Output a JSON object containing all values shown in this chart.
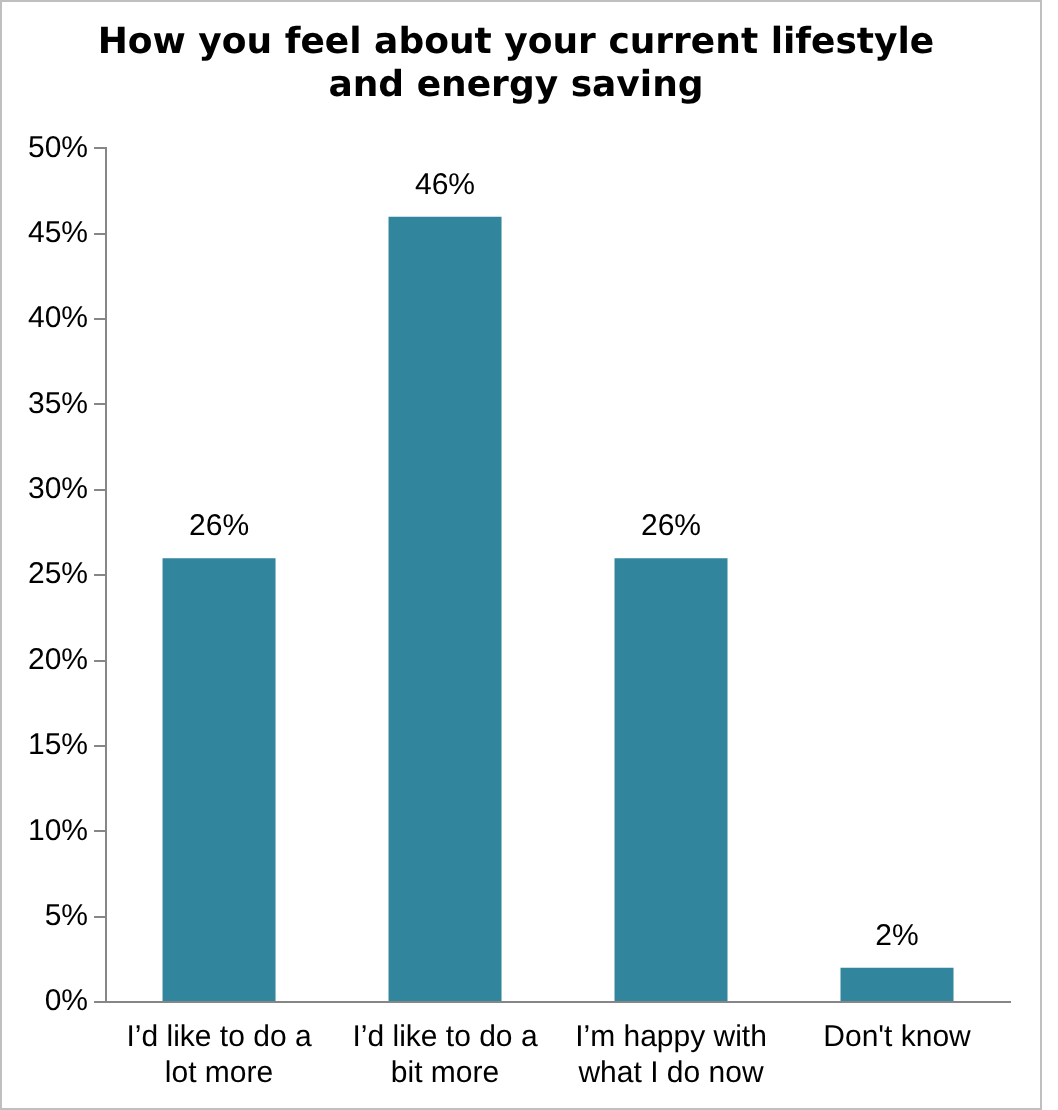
{
  "chart_data": {
    "type": "bar",
    "title": "How you feel about your current lifestyle and energy saving",
    "categories": [
      "I’d like to do a lot more",
      "I’d like to do a bit more",
      "I’m happy with what I do now",
      "Don't know"
    ],
    "values": [
      26,
      46,
      26,
      2
    ],
    "value_labels": [
      "26%",
      "46%",
      "26%",
      "2%"
    ],
    "color": "#31859c",
    "ylim": [
      0,
      50
    ],
    "yticks": [
      {
        "value": 0,
        "label": "0%"
      },
      {
        "value": 5,
        "label": "5%"
      },
      {
        "value": 10,
        "label": "10%"
      },
      {
        "value": 15,
        "label": "15%"
      },
      {
        "value": 20,
        "label": "20%"
      },
      {
        "value": 25,
        "label": "25%"
      },
      {
        "value": 30,
        "label": "30%"
      },
      {
        "value": 35,
        "label": "35%"
      },
      {
        "value": 40,
        "label": "40%"
      },
      {
        "value": 45,
        "label": "45%"
      },
      {
        "value": 50,
        "label": "50%"
      }
    ],
    "grid": false,
    "legend": false
  }
}
